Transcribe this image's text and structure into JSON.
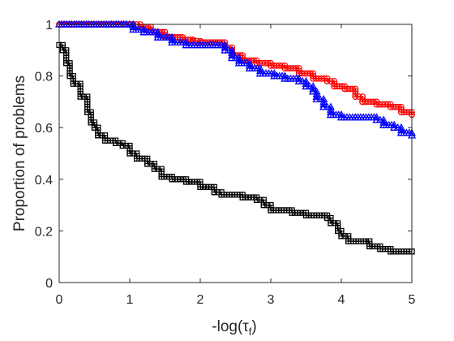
{
  "chart_data": {
    "type": "line",
    "xlabel": "-log(τ_f)",
    "ylabel": "Proportion of problems",
    "xlim": [
      0,
      5
    ],
    "ylim": [
      0,
      1
    ],
    "xticks": [
      "0",
      "1",
      "2",
      "3",
      "4",
      "5"
    ],
    "yticks": [
      "0",
      "0.2",
      "0.4",
      "0.6",
      "0.8",
      "1"
    ],
    "grid": false,
    "legend": false,
    "series": [
      {
        "color": "#ff0000",
        "marker": "circle",
        "points": [
          [
            0,
            1.0
          ],
          [
            1.05,
            1.0
          ],
          [
            1.15,
            0.99
          ],
          [
            1.3,
            0.97
          ],
          [
            1.5,
            0.95
          ],
          [
            1.75,
            0.94
          ],
          [
            1.9,
            0.935
          ],
          [
            2.0,
            0.93
          ],
          [
            2.2,
            0.93
          ],
          [
            2.35,
            0.91
          ],
          [
            2.45,
            0.88
          ],
          [
            2.6,
            0.86
          ],
          [
            2.8,
            0.85
          ],
          [
            3.0,
            0.84
          ],
          [
            3.2,
            0.83
          ],
          [
            3.4,
            0.81
          ],
          [
            3.6,
            0.79
          ],
          [
            3.8,
            0.78
          ],
          [
            3.9,
            0.76
          ],
          [
            4.05,
            0.75
          ],
          [
            4.2,
            0.72
          ],
          [
            4.3,
            0.7
          ],
          [
            4.5,
            0.69
          ],
          [
            4.7,
            0.68
          ],
          [
            4.85,
            0.66
          ],
          [
            5.0,
            0.65
          ]
        ]
      },
      {
        "color": "#0000ff",
        "marker": "triangle",
        "points": [
          [
            0,
            1.0
          ],
          [
            0.95,
            1.0
          ],
          [
            1.05,
            0.98
          ],
          [
            1.2,
            0.97
          ],
          [
            1.4,
            0.95
          ],
          [
            1.6,
            0.93
          ],
          [
            1.8,
            0.92
          ],
          [
            2.0,
            0.92
          ],
          [
            2.25,
            0.92
          ],
          [
            2.35,
            0.9
          ],
          [
            2.45,
            0.87
          ],
          [
            2.55,
            0.85
          ],
          [
            2.7,
            0.83
          ],
          [
            2.85,
            0.81
          ],
          [
            3.05,
            0.8
          ],
          [
            3.2,
            0.79
          ],
          [
            3.4,
            0.78
          ],
          [
            3.5,
            0.76
          ],
          [
            3.6,
            0.74
          ],
          [
            3.65,
            0.71
          ],
          [
            3.75,
            0.68
          ],
          [
            3.85,
            0.65
          ],
          [
            4.0,
            0.64
          ],
          [
            4.2,
            0.64
          ],
          [
            4.5,
            0.63
          ],
          [
            4.6,
            0.61
          ],
          [
            4.75,
            0.6
          ],
          [
            4.85,
            0.58
          ],
          [
            5.0,
            0.57
          ]
        ]
      },
      {
        "color": "#000000",
        "marker": "square",
        "points": [
          [
            0,
            0.92
          ],
          [
            0.05,
            0.9
          ],
          [
            0.1,
            0.85
          ],
          [
            0.15,
            0.8
          ],
          [
            0.2,
            0.77
          ],
          [
            0.3,
            0.72
          ],
          [
            0.4,
            0.66
          ],
          [
            0.45,
            0.62
          ],
          [
            0.5,
            0.6
          ],
          [
            0.55,
            0.57
          ],
          [
            0.65,
            0.55
          ],
          [
            0.8,
            0.54
          ],
          [
            0.9,
            0.53
          ],
          [
            1.0,
            0.5
          ],
          [
            1.1,
            0.48
          ],
          [
            1.25,
            0.46
          ],
          [
            1.35,
            0.44
          ],
          [
            1.45,
            0.41
          ],
          [
            1.6,
            0.4
          ],
          [
            1.8,
            0.39
          ],
          [
            2.0,
            0.37
          ],
          [
            2.2,
            0.35
          ],
          [
            2.3,
            0.34
          ],
          [
            2.6,
            0.33
          ],
          [
            2.8,
            0.32
          ],
          [
            2.9,
            0.3
          ],
          [
            3.0,
            0.28
          ],
          [
            3.3,
            0.27
          ],
          [
            3.5,
            0.26
          ],
          [
            3.8,
            0.25
          ],
          [
            3.85,
            0.23
          ],
          [
            3.95,
            0.2
          ],
          [
            4.0,
            0.18
          ],
          [
            4.1,
            0.16
          ],
          [
            4.35,
            0.16
          ],
          [
            4.4,
            0.14
          ],
          [
            4.55,
            0.13
          ],
          [
            4.7,
            0.12
          ],
          [
            5.0,
            0.12
          ]
        ]
      }
    ]
  }
}
